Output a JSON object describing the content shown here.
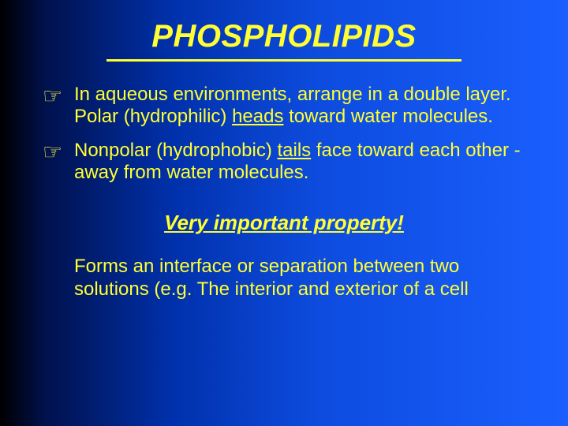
{
  "slide": {
    "background_gradient": [
      "#000000",
      "#00114d",
      "#0030aa",
      "#0d4bdd",
      "#1a5fff"
    ],
    "text_color": "#ffff33",
    "title": "PHOSPHOLIPIDS",
    "title_fontsize": 40,
    "title_italic": true,
    "title_bold": true,
    "title_underline_color": "#ffff33",
    "title_underline_width": 450,
    "bullets": [
      {
        "icon": "☞",
        "pre": "In aqueous environments, arrange in a double layer.  Polar  (hydrophilic)  ",
        "underlined": "heads",
        "post": "  toward  water molecules."
      },
      {
        "icon": "☞",
        "pre": "Nonpolar (hydrophobic) ",
        "underlined": "tails",
        "post": " face toward  each other - away from water molecules."
      }
    ],
    "body_fontsize": 24,
    "callout": "Very important property!",
    "callout_fontsize": 26,
    "callout_italic": true,
    "callout_bold": true,
    "callout_underline": true,
    "paragraph": "Forms an interface or separation between two solutions (e.g. The interior and exterior of a cell"
  }
}
